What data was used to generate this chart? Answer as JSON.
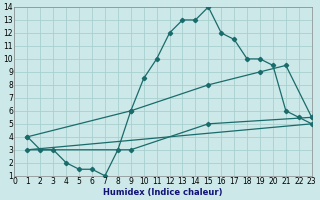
{
  "xlabel": "Humidex (Indice chaleur)",
  "bg_color": "#cce8e8",
  "grid_color": "#a8d0d0",
  "line_color": "#1a6b6b",
  "xlim": [
    0,
    23
  ],
  "ylim": [
    1,
    14
  ],
  "xticks": [
    0,
    1,
    2,
    3,
    4,
    5,
    6,
    7,
    8,
    9,
    10,
    11,
    12,
    13,
    14,
    15,
    16,
    17,
    18,
    19,
    20,
    21,
    22,
    23
  ],
  "yticks": [
    1,
    2,
    3,
    4,
    5,
    6,
    7,
    8,
    9,
    10,
    11,
    12,
    13,
    14
  ],
  "curve1_x": [
    1,
    2,
    3,
    4,
    5,
    6,
    7,
    8,
    9,
    10,
    11,
    12,
    13,
    14,
    15,
    16,
    17,
    18,
    19,
    20,
    21,
    22,
    23
  ],
  "curve1_y": [
    4,
    3,
    3,
    2,
    1.5,
    1.5,
    1,
    3,
    6,
    8.5,
    10,
    12,
    13,
    13,
    14,
    12,
    11.5,
    10,
    10,
    9.5,
    6,
    5.5,
    5
  ],
  "curve2_x": [
    1,
    9,
    15,
    19,
    21,
    23
  ],
  "curve2_y": [
    4,
    6,
    8,
    9,
    9.5,
    5.5
  ],
  "curve3_x": [
    1,
    9,
    15,
    23
  ],
  "curve3_y": [
    3,
    3,
    5,
    5.5
  ],
  "curve4_x": [
    1,
    23
  ],
  "curve4_y": [
    3,
    5
  ]
}
